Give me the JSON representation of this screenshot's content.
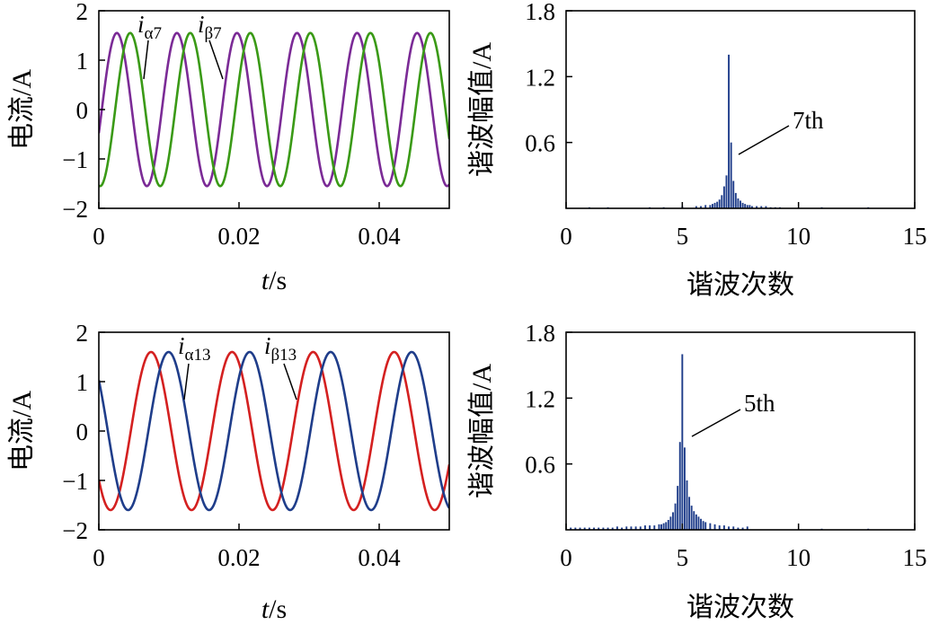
{
  "figure": {
    "panels": [
      {
        "id": "tl",
        "chart_data": {
          "type": "line",
          "xlabel_italic": "t",
          "xlabel_unit": "/s",
          "ylabel": "电流/A",
          "xlim": [
            0,
            0.05
          ],
          "ylim": [
            -2,
            2
          ],
          "xticks": [
            "0",
            "0.02",
            "0.04"
          ],
          "xtick_values": [
            0,
            0.02,
            0.04
          ],
          "yticks": [
            "2",
            "1",
            "0",
            "−1",
            "−2"
          ],
          "ytick_values": [
            2,
            1,
            0,
            -1,
            -2
          ],
          "series": [
            {
              "name_main": "i",
              "name_sub": "α7",
              "color": "#7b2b96",
              "amplitude": 1.55,
              "frequency_hz": 116.7,
              "phase_deg": -18
            },
            {
              "name_main": "i",
              "name_sub": "β7",
              "color": "#3a9a16",
              "amplitude": 1.55,
              "frequency_hz": 116.7,
              "phase_deg": -98
            }
          ]
        }
      },
      {
        "id": "tr",
        "chart_data": {
          "type": "bar",
          "xlabel": "谐波次数",
          "ylabel": "谐波幅值/A",
          "xlim": [
            0,
            15
          ],
          "ylim": [
            0,
            1.8
          ],
          "xticks": [
            "0",
            "5",
            "10",
            "15"
          ],
          "xtick_values": [
            0,
            5,
            10,
            15
          ],
          "yticks": [
            "1.8",
            "1.2",
            "0.6"
          ],
          "ytick_values": [
            1.8,
            1.2,
            0.6
          ],
          "bar_color": "#1f3d8a",
          "annotation": "7th",
          "bars": {
            "x": [
              1.0,
              1.8,
              3.6,
              4.2,
              5.0,
              5.6,
              5.8,
              6.0,
              6.2,
              6.3,
              6.4,
              6.5,
              6.6,
              6.7,
              6.8,
              6.9,
              7.0,
              7.1,
              7.2,
              7.3,
              7.4,
              7.5,
              7.6,
              7.7,
              7.8,
              7.9,
              8.0,
              8.2,
              8.4,
              8.6,
              8.8,
              9.0,
              9.2,
              11.0,
              13.0
            ],
            "values": [
              0.01,
              0.01,
              0.01,
              0.01,
              0.02,
              0.02,
              0.02,
              0.03,
              0.03,
              0.04,
              0.05,
              0.06,
              0.08,
              0.12,
              0.2,
              0.3,
              1.4,
              0.6,
              0.25,
              0.14,
              0.09,
              0.07,
              0.05,
              0.04,
              0.03,
              0.03,
              0.02,
              0.02,
              0.02,
              0.02,
              0.01,
              0.01,
              0.01,
              0.01,
              0.01
            ]
          }
        }
      },
      {
        "id": "bl",
        "chart_data": {
          "type": "line",
          "xlabel_italic": "t",
          "xlabel_unit": "/s",
          "ylabel": "电流/A",
          "xlim": [
            0,
            0.05
          ],
          "ylim": [
            -2,
            2
          ],
          "xticks": [
            "0",
            "0.02",
            "0.04"
          ],
          "xtick_values": [
            0,
            0.02,
            0.04
          ],
          "yticks": [
            "2",
            "1",
            "0",
            "−1",
            "−2"
          ],
          "ytick_values": [
            2,
            1,
            0,
            -1,
            -2
          ],
          "series": [
            {
              "name_main": "i",
              "name_sub": "α13",
              "color": "#d42020",
              "amplitude": 1.6,
              "frequency_hz": 86.5,
              "phase_deg": -142
            },
            {
              "name_main": "i",
              "name_sub": "β13",
              "color": "#1f3d8a",
              "amplitude": 1.6,
              "frequency_hz": 86.5,
              "phase_deg": 140
            }
          ]
        }
      },
      {
        "id": "br",
        "chart_data": {
          "type": "bar",
          "xlabel": "谐波次数",
          "ylabel": "谐波幅值/A",
          "xlim": [
            0,
            15
          ],
          "ylim": [
            0,
            1.8
          ],
          "xticks": [
            "0",
            "5",
            "10",
            "15"
          ],
          "xtick_values": [
            0,
            5,
            10,
            15
          ],
          "yticks": [
            "1.8",
            "1.2",
            "0.6"
          ],
          "ytick_values": [
            1.8,
            1.2,
            0.6
          ],
          "bar_color": "#1f3d8a",
          "annotation": "5th",
          "bars": {
            "x": [
              0.2,
              0.4,
              0.6,
              0.8,
              1.0,
              1.2,
              1.4,
              1.6,
              1.8,
              2.0,
              2.2,
              2.4,
              2.6,
              2.8,
              3.0,
              3.2,
              3.4,
              3.6,
              3.8,
              4.0,
              4.1,
              4.2,
              4.3,
              4.4,
              4.5,
              4.6,
              4.7,
              4.8,
              4.9,
              5.0,
              5.1,
              5.2,
              5.3,
              5.4,
              5.5,
              5.6,
              5.7,
              5.8,
              5.9,
              6.0,
              6.2,
              6.4,
              6.6,
              6.8,
              7.0,
              7.2,
              7.4,
              7.6,
              7.8,
              11.0,
              13.0
            ],
            "values": [
              0.02,
              0.02,
              0.02,
              0.02,
              0.02,
              0.02,
              0.02,
              0.02,
              0.02,
              0.02,
              0.03,
              0.02,
              0.03,
              0.03,
              0.03,
              0.03,
              0.04,
              0.04,
              0.04,
              0.05,
              0.05,
              0.06,
              0.07,
              0.09,
              0.12,
              0.16,
              0.24,
              0.4,
              0.8,
              1.6,
              0.75,
              0.45,
              0.3,
              0.22,
              0.17,
              0.14,
              0.12,
              0.1,
              0.08,
              0.07,
              0.06,
              0.05,
              0.04,
              0.04,
              0.03,
              0.03,
              0.02,
              0.02,
              0.03,
              0.01,
              0.01
            ]
          }
        }
      }
    ]
  }
}
